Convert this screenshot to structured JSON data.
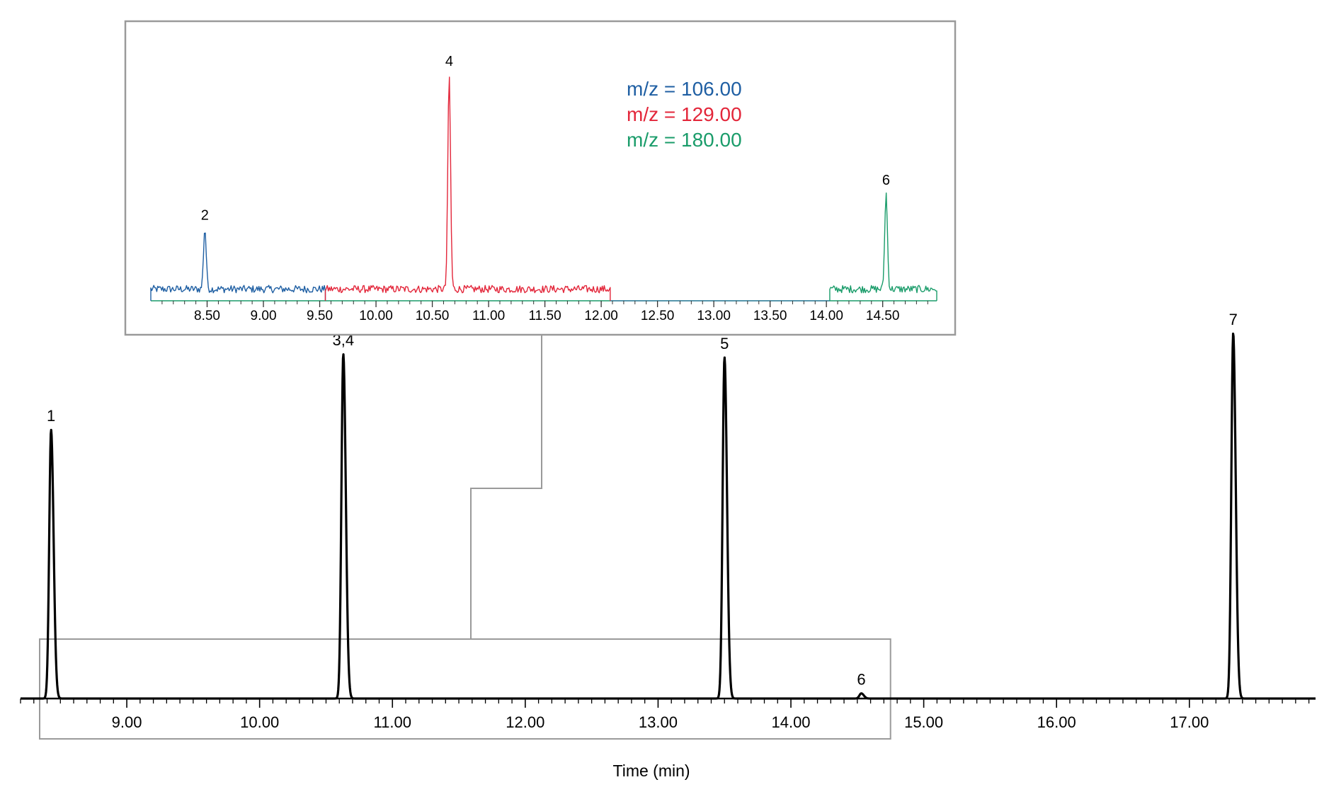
{
  "chart_data": [
    {
      "id": "main",
      "type": "line",
      "title": "",
      "xlabel": "Time (min)",
      "ylabel": "",
      "xlim": [
        8.2,
        17.95
      ],
      "ylim": [
        0,
        100
      ],
      "ticks": [
        9.0,
        10.0,
        11.0,
        12.0,
        13.0,
        14.0,
        15.0,
        16.0,
        17.0
      ],
      "tick_labels": [
        "9.00",
        "10.00",
        "11.00",
        "12.00",
        "13.00",
        "14.00",
        "15.00",
        "16.00",
        "17.00"
      ],
      "minor_tick_step": 0.1,
      "grid": false,
      "series": [
        {
          "color": "#000000",
          "peaks": [
            {
              "label": "1",
              "x": 8.43,
              "y": 78
            },
            {
              "label": "3,4",
              "x": 10.63,
              "y": 100
            },
            {
              "label": "5",
              "x": 13.5,
              "y": 99
            },
            {
              "label": "6",
              "x": 14.53,
              "y": 1.5
            },
            {
              "label": "7",
              "x": 17.33,
              "y": 106
            }
          ]
        }
      ],
      "zoom_region": [
        8.2,
        14.75
      ]
    },
    {
      "id": "inset",
      "type": "line",
      "title": "",
      "xlabel": "",
      "ylabel": "",
      "xlim": [
        8.0,
        14.98
      ],
      "ylim": [
        0,
        100
      ],
      "ticks": [
        8.5,
        9.0,
        9.5,
        10.0,
        10.5,
        11.0,
        11.5,
        12.0,
        12.5,
        13.0,
        13.5,
        14.0,
        14.5
      ],
      "tick_labels": [
        "8.50",
        "9.00",
        "9.50",
        "10.00",
        "10.50",
        "11.00",
        "11.50",
        "12.00",
        "12.50",
        "13.00",
        "13.50",
        "14.00",
        "14.50"
      ],
      "minor_tick_step": 0.1,
      "grid": false,
      "legend_position": "top-right",
      "series": [
        {
          "name": "m/z = 106.00",
          "color": "#1f5fa3",
          "x_range": [
            8.0,
            9.55
          ],
          "peaks": [
            {
              "label": "2",
              "x": 8.48,
              "y": 26
            }
          ]
        },
        {
          "name": "m/z = 129.00",
          "color": "#e3263a",
          "x_range": [
            9.55,
            12.08
          ],
          "peaks": [
            {
              "label": "4",
              "x": 10.65,
              "y": 92
            }
          ]
        },
        {
          "name": "m/z = 180.00",
          "color": "#1a9c6a",
          "x_range": [
            14.03,
            14.98
          ],
          "peaks": [
            {
              "label": "6",
              "x": 14.53,
              "y": 41
            }
          ]
        }
      ]
    }
  ]
}
